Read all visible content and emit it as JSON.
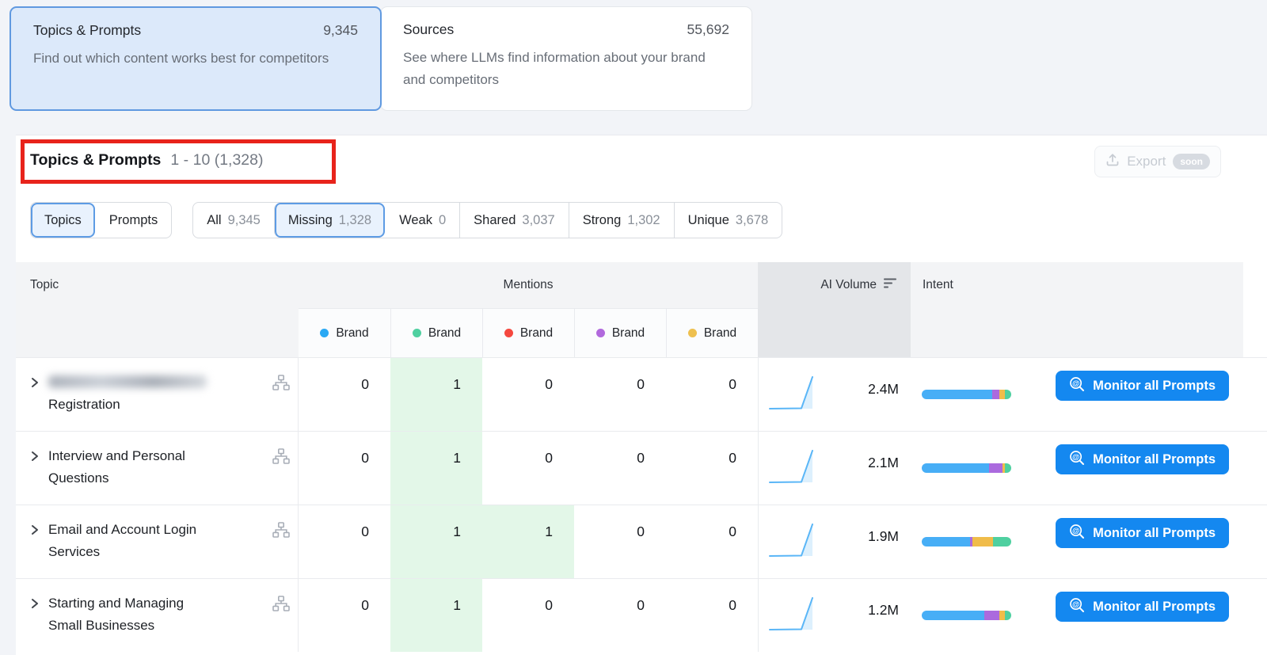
{
  "colors": {
    "accent_blue": "#1488f0",
    "selected_card_bg": "#dce9fa",
    "selected_card_border": "#6099e0",
    "annotation_red": "#e8231b",
    "mention_highlight_green": "#e3f7e8",
    "intent_blue": "#47aef6",
    "intent_purple": "#ab6ade",
    "intent_yellow": "#f0bc4a",
    "intent_green": "#4fd0a0"
  },
  "summary_cards": [
    {
      "title": "Topics & Prompts",
      "value": "9,345",
      "description": "Find out which content works best for competitors",
      "selected": true
    },
    {
      "title": "Sources",
      "value": "55,692",
      "description": "See where LLMs find information about your brand and competitors",
      "selected": false
    }
  ],
  "section": {
    "title": "Topics & Prompts",
    "range": "1 - 10 (1,328)",
    "export_label": "Export",
    "export_badge": "soon"
  },
  "view_toggle": [
    {
      "label": "Topics",
      "selected": true
    },
    {
      "label": "Prompts",
      "selected": false
    }
  ],
  "status_filters": [
    {
      "label": "All",
      "count": "9,345",
      "selected": false
    },
    {
      "label": "Missing",
      "count": "1,328",
      "selected": true
    },
    {
      "label": "Weak",
      "count": "0",
      "selected": false
    },
    {
      "label": "Shared",
      "count": "3,037",
      "selected": false
    },
    {
      "label": "Strong",
      "count": "1,302",
      "selected": false
    },
    {
      "label": "Unique",
      "count": "3,678",
      "selected": false
    }
  ],
  "table": {
    "headers": {
      "topic": "Topic",
      "mentions": "Mentions",
      "ai_volume": "AI Volume",
      "intent": "Intent"
    },
    "brand_columns": [
      {
        "label": "Brand",
        "color": "#2aa9f4"
      },
      {
        "label": "Brand",
        "color": "#4fd0a0"
      },
      {
        "label": "Brand",
        "color": "#f5483f"
      },
      {
        "label": "Brand",
        "color": "#b169dd"
      },
      {
        "label": "Brand",
        "color": "#eec04f"
      }
    ],
    "monitor_button_label": "Monitor all Prompts",
    "rows": [
      {
        "topic_lines": [
          "",
          "Registration"
        ],
        "topic_line1_blurred": true,
        "mentions": [
          "0",
          "1",
          "0",
          "0",
          "0"
        ],
        "highlighted_mentions": [
          1
        ],
        "ai_volume": "2.4M",
        "intent_segments": [
          {
            "color": "intent_blue",
            "fraction": 0.79
          },
          {
            "color": "intent_purple",
            "fraction": 0.08
          },
          {
            "color": "intent_yellow",
            "fraction": 0.06
          },
          {
            "color": "intent_green",
            "fraction": 0.07
          }
        ]
      },
      {
        "topic_lines": [
          "Interview and Personal",
          "Questions"
        ],
        "topic_line1_blurred": false,
        "mentions": [
          "0",
          "1",
          "0",
          "0",
          "0"
        ],
        "highlighted_mentions": [
          1
        ],
        "ai_volume": "2.1M",
        "intent_segments": [
          {
            "color": "intent_blue",
            "fraction": 0.75
          },
          {
            "color": "intent_purple",
            "fraction": 0.15
          },
          {
            "color": "intent_yellow",
            "fraction": 0.03
          },
          {
            "color": "intent_green",
            "fraction": 0.07
          }
        ]
      },
      {
        "topic_lines": [
          "Email and Account Login",
          "Services"
        ],
        "topic_line1_blurred": false,
        "mentions": [
          "0",
          "1",
          "1",
          "0",
          "0"
        ],
        "highlighted_mentions": [
          1,
          2
        ],
        "ai_volume": "1.9M",
        "intent_segments": [
          {
            "color": "intent_blue",
            "fraction": 0.54
          },
          {
            "color": "intent_purple",
            "fraction": 0.03
          },
          {
            "color": "intent_yellow",
            "fraction": 0.23
          },
          {
            "color": "intent_green",
            "fraction": 0.2
          }
        ]
      },
      {
        "topic_lines": [
          "Starting and Managing",
          "Small Businesses"
        ],
        "topic_line1_blurred": false,
        "mentions": [
          "0",
          "1",
          "0",
          "0",
          "0"
        ],
        "highlighted_mentions": [
          1
        ],
        "ai_volume": "1.2M",
        "intent_segments": [
          {
            "color": "intent_blue",
            "fraction": 0.7
          },
          {
            "color": "intent_purple",
            "fraction": 0.17
          },
          {
            "color": "intent_yellow",
            "fraction": 0.06
          },
          {
            "color": "intent_green",
            "fraction": 0.07
          }
        ]
      }
    ]
  }
}
